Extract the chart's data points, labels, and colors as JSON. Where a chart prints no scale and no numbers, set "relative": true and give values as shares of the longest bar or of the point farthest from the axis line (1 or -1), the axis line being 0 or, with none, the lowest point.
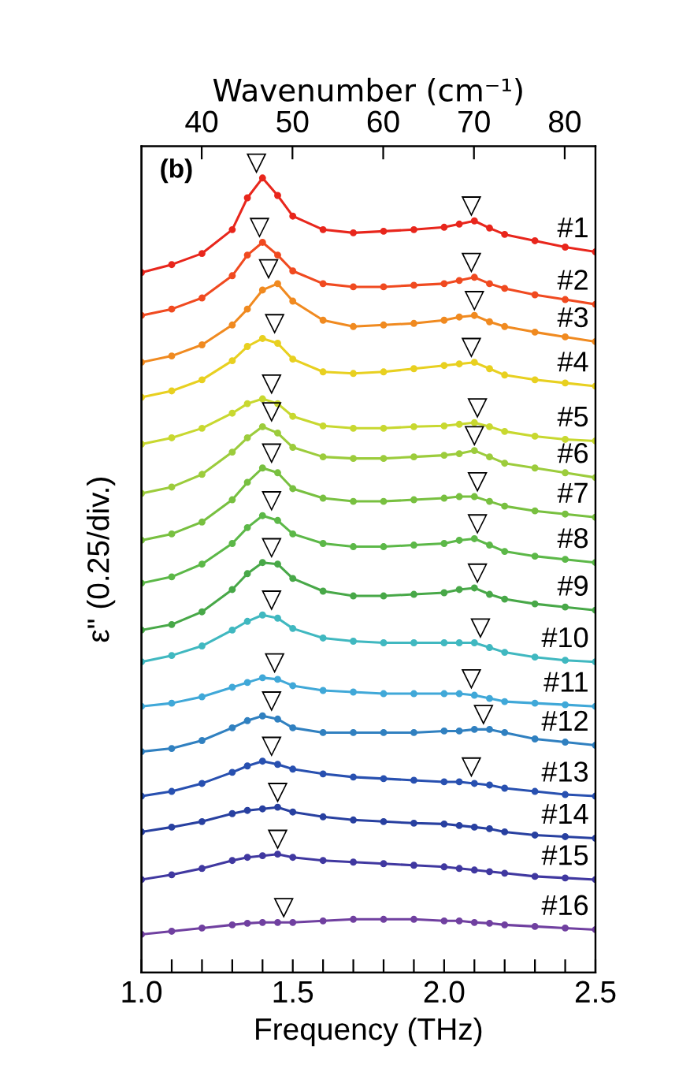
{
  "chart_data": {
    "type": "line",
    "relative": true,
    "xlabel": "Frequency (THz)",
    "ylabel": "ε\" (0.25/div.)",
    "x2label": "Wavenumber (cm⁻¹)",
    "xlim": [
      1.0,
      2.5
    ],
    "xticks": [
      {
        "value": 1.0,
        "label": "1.0"
      },
      {
        "value": 1.1,
        "label": null
      },
      {
        "value": 1.2,
        "label": null
      },
      {
        "value": 1.3,
        "label": null
      },
      {
        "value": 1.4,
        "label": null
      },
      1.5,
      {
        "value": 1.6,
        "label": null
      },
      {
        "value": 1.7,
        "label": null
      },
      {
        "value": 1.8,
        "label": null
      },
      {
        "value": 1.9,
        "label": null
      },
      {
        "value": 2.0,
        "label": "2.0"
      },
      {
        "value": 2.1,
        "label": null
      },
      {
        "value": 2.2,
        "label": null
      },
      {
        "value": 2.3,
        "label": null
      },
      {
        "value": 2.4,
        "label": null
      },
      2.5
    ],
    "x2lim": [
      33.36,
      83.39
    ],
    "x2ticks": [
      40,
      50,
      60,
      70,
      80
    ],
    "x": [
      1.0,
      1.1,
      1.2,
      1.3,
      1.35,
      1.4,
      1.45,
      1.5,
      1.6,
      1.7,
      1.8,
      1.9,
      2.0,
      2.05,
      2.1,
      2.15,
      2.2,
      2.3,
      2.4,
      2.5
    ],
    "marker": "circle",
    "line_style": "solid",
    "grid": false,
    "legend": false,
    "series": [
      {
        "name": "#1",
        "color": "#e8261c",
        "values": [
          0.881,
          0.891,
          0.905,
          0.935,
          0.975,
          1.0,
          0.978,
          0.952,
          0.935,
          0.931,
          0.933,
          0.935,
          0.938,
          0.942,
          0.946,
          0.937,
          0.929,
          0.921,
          0.913,
          0.907
        ]
      },
      {
        "name": "#2",
        "color": "#f04a20",
        "values": [
          0.827,
          0.835,
          0.849,
          0.877,
          0.903,
          0.919,
          0.903,
          0.883,
          0.867,
          0.863,
          0.863,
          0.865,
          0.867,
          0.871,
          0.875,
          0.867,
          0.861,
          0.853,
          0.847,
          0.841
        ]
      },
      {
        "name": "#3",
        "color": "#f08a20",
        "values": [
          0.768,
          0.776,
          0.79,
          0.815,
          0.835,
          0.859,
          0.867,
          0.845,
          0.821,
          0.813,
          0.815,
          0.817,
          0.821,
          0.825,
          0.827,
          0.819,
          0.813,
          0.806,
          0.8,
          0.794
        ]
      },
      {
        "name": "#4",
        "color": "#e8d020",
        "values": [
          0.724,
          0.732,
          0.746,
          0.77,
          0.788,
          0.798,
          0.792,
          0.772,
          0.756,
          0.754,
          0.756,
          0.76,
          0.764,
          0.766,
          0.768,
          0.76,
          0.752,
          0.746,
          0.742,
          0.738
        ]
      },
      {
        "name": "#5",
        "color": "#c8d830",
        "values": [
          0.665,
          0.673,
          0.685,
          0.704,
          0.716,
          0.722,
          0.716,
          0.7,
          0.688,
          0.685,
          0.685,
          0.687,
          0.688,
          0.69,
          0.692,
          0.687,
          0.681,
          0.675,
          0.671,
          0.669
        ]
      },
      {
        "name": "#6",
        "color": "#9ccc3c",
        "values": [
          0.603,
          0.611,
          0.627,
          0.655,
          0.673,
          0.687,
          0.679,
          0.661,
          0.649,
          0.647,
          0.647,
          0.649,
          0.651,
          0.653,
          0.657,
          0.649,
          0.641,
          0.635,
          0.629,
          0.623
        ]
      },
      {
        "name": "#7",
        "color": "#78c040",
        "values": [
          0.544,
          0.552,
          0.567,
          0.595,
          0.617,
          0.635,
          0.629,
          0.609,
          0.597,
          0.593,
          0.593,
          0.595,
          0.597,
          0.599,
          0.599,
          0.593,
          0.587,
          0.581,
          0.577,
          0.573
        ]
      },
      {
        "name": "#8",
        "color": "#5cb848",
        "values": [
          0.49,
          0.498,
          0.514,
          0.54,
          0.56,
          0.575,
          0.569,
          0.552,
          0.54,
          0.536,
          0.536,
          0.538,
          0.54,
          0.544,
          0.546,
          0.538,
          0.53,
          0.524,
          0.52,
          0.516
        ]
      },
      {
        "name": "#9",
        "color": "#48a848",
        "values": [
          0.431,
          0.438,
          0.454,
          0.482,
          0.502,
          0.516,
          0.514,
          0.496,
          0.48,
          0.474,
          0.474,
          0.476,
          0.478,
          0.482,
          0.484,
          0.476,
          0.47,
          0.464,
          0.46,
          0.456
        ]
      },
      {
        "name": "#10",
        "color": "#40b8c0",
        "values": [
          0.391,
          0.399,
          0.411,
          0.431,
          0.442,
          0.45,
          0.446,
          0.433,
          0.421,
          0.417,
          0.415,
          0.415,
          0.415,
          0.415,
          0.415,
          0.409,
          0.403,
          0.397,
          0.393,
          0.391
        ]
      },
      {
        "name": "#11",
        "color": "#40a8d8",
        "values": [
          0.335,
          0.339,
          0.347,
          0.359,
          0.365,
          0.371,
          0.369,
          0.361,
          0.355,
          0.353,
          0.351,
          0.351,
          0.351,
          0.351,
          0.349,
          0.345,
          0.341,
          0.339,
          0.337,
          0.335
        ]
      },
      {
        "name": "#12",
        "color": "#3080c0",
        "values": [
          0.278,
          0.282,
          0.292,
          0.308,
          0.317,
          0.323,
          0.319,
          0.308,
          0.302,
          0.302,
          0.302,
          0.302,
          0.304,
          0.304,
          0.306,
          0.306,
          0.302,
          0.294,
          0.29,
          0.286
        ]
      },
      {
        "name": "#13",
        "color": "#2850b0",
        "values": [
          0.222,
          0.228,
          0.238,
          0.252,
          0.26,
          0.266,
          0.262,
          0.256,
          0.25,
          0.246,
          0.244,
          0.242,
          0.24,
          0.24,
          0.238,
          0.236,
          0.232,
          0.228,
          0.224,
          0.222
        ]
      },
      {
        "name": "#14",
        "color": "#2840a0",
        "values": [
          0.177,
          0.183,
          0.19,
          0.2,
          0.204,
          0.206,
          0.208,
          0.202,
          0.196,
          0.192,
          0.19,
          0.188,
          0.187,
          0.185,
          0.183,
          0.181,
          0.177,
          0.173,
          0.171,
          0.169
        ]
      },
      {
        "name": "#15",
        "color": "#4038a0",
        "values": [
          0.117,
          0.123,
          0.131,
          0.141,
          0.145,
          0.147,
          0.149,
          0.145,
          0.141,
          0.139,
          0.137,
          0.135,
          0.133,
          0.131,
          0.129,
          0.127,
          0.125,
          0.121,
          0.119,
          0.117
        ]
      },
      {
        "name": "#16",
        "color": "#7040a0",
        "values": [
          0.048,
          0.052,
          0.056,
          0.06,
          0.062,
          0.063,
          0.063,
          0.063,
          0.065,
          0.067,
          0.067,
          0.067,
          0.065,
          0.065,
          0.063,
          0.062,
          0.06,
          0.058,
          0.056,
          0.054
        ]
      }
    ],
    "annotations": [
      "(b)",
      {
        "text": "▽",
        "x": 1.38,
        "y": 1.0
      },
      {
        "text": "▽",
        "x": 2.09,
        "y": 0.946
      },
      {
        "text": "▽",
        "x": 1.39,
        "y": 0.919
      },
      {
        "text": "▽",
        "x": 2.09,
        "y": 0.875
      },
      {
        "text": "▽",
        "x": 1.42,
        "y": 0.867
      },
      {
        "text": "▽",
        "x": 2.1,
        "y": 0.827
      },
      {
        "text": "▽",
        "x": 1.44,
        "y": 0.798
      },
      {
        "text": "▽",
        "x": 2.09,
        "y": 0.768
      },
      {
        "text": "▽",
        "x": 1.43,
        "y": 0.722
      },
      {
        "text": "▽",
        "x": 2.11,
        "y": 0.692
      },
      {
        "text": "▽",
        "x": 1.43,
        "y": 0.687
      },
      {
        "text": "▽",
        "x": 2.1,
        "y": 0.657
      },
      {
        "text": "▽",
        "x": 1.43,
        "y": 0.635
      },
      {
        "text": "▽",
        "x": 2.11,
        "y": 0.599
      },
      {
        "text": "▽",
        "x": 1.43,
        "y": 0.575
      },
      {
        "text": "▽",
        "x": 2.11,
        "y": 0.546
      },
      {
        "text": "▽",
        "x": 1.43,
        "y": 0.516
      },
      {
        "text": "▽",
        "x": 2.11,
        "y": 0.484
      },
      {
        "text": "▽",
        "x": 1.43,
        "y": 0.45
      },
      {
        "text": "▽",
        "x": 2.12,
        "y": 0.415
      },
      {
        "text": "▽",
        "x": 1.44,
        "y": 0.371
      },
      {
        "text": "▽",
        "x": 2.09,
        "y": 0.351
      },
      {
        "text": "▽",
        "x": 1.43,
        "y": 0.323
      },
      {
        "text": "▽",
        "x": 2.13,
        "y": 0.306
      },
      {
        "text": "▽",
        "x": 1.43,
        "y": 0.266
      },
      {
        "text": "▽",
        "x": 2.09,
        "y": 0.24
      },
      {
        "text": "▽",
        "x": 1.45,
        "y": 0.208
      },
      {
        "text": "▽",
        "x": 1.45,
        "y": 0.149
      },
      {
        "text": "▽",
        "x": 1.47,
        "y": 0.063
      }
    ]
  }
}
